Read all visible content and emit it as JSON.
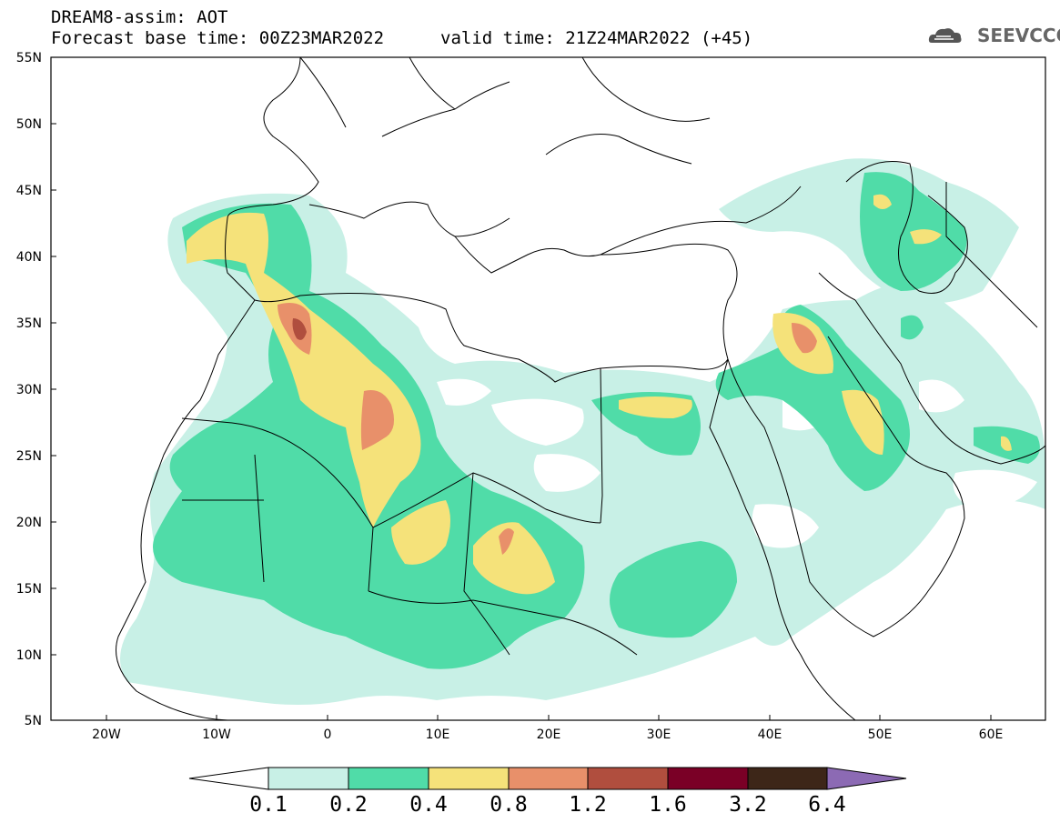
{
  "title": {
    "line1": "DREAM8-assim: AOT",
    "line2": "Forecast base time: 00Z23MAR2022",
    "line3": "valid time: 21Z24MAR2022 (+45)"
  },
  "logo": {
    "text": "SEEVCCC",
    "icon": "cloud-icon"
  },
  "axes": {
    "lon_ticks": [
      "20W",
      "10W",
      "0",
      "10E",
      "20E",
      "30E",
      "40E",
      "50E",
      "60E"
    ],
    "lat_ticks": [
      "55N",
      "50N",
      "45N",
      "40N",
      "35N",
      "30N",
      "25N",
      "20N",
      "15N",
      "10N",
      "5N"
    ]
  },
  "colorbar": {
    "levels": [
      "0.1",
      "0.2",
      "0.4",
      "0.8",
      "1.2",
      "1.6",
      "3.2",
      "6.4"
    ],
    "colors": [
      "#ffffff",
      "#c8f0e6",
      "#50dca8",
      "#f5e27a",
      "#e8906a",
      "#b04e3e",
      "#7a0026",
      "#3d2618",
      "#8c6ab4"
    ]
  }
}
